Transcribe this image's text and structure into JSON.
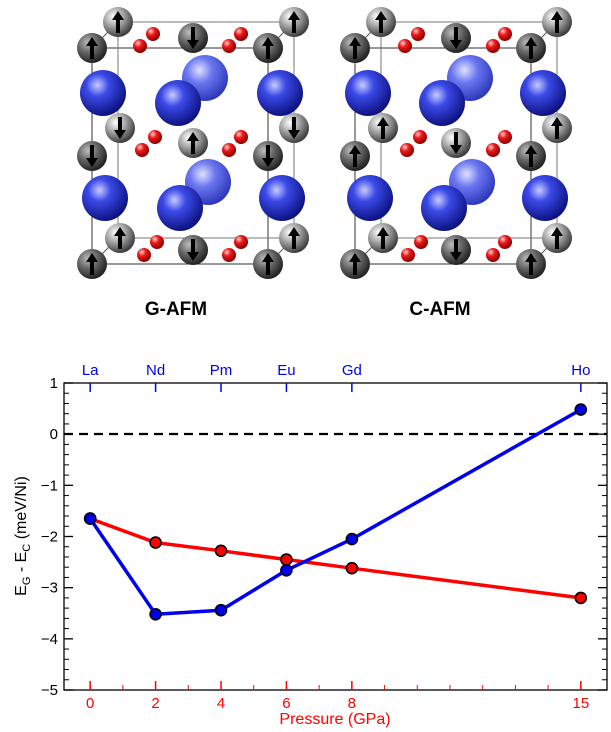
{
  "structures": {
    "left_label": "G-AFM",
    "right_label": "C-AFM",
    "colors": {
      "nickel": "#9a9a9a",
      "rare_earth": "#1f2fd0",
      "oxygen": "#e01010",
      "arrow": "#000000"
    }
  },
  "chart_data": {
    "type": "line",
    "xlabel": "Pressure (GPa)",
    "ylabel_main": "E",
    "ylabel_sub1": "G",
    "ylabel_mid": " - E",
    "ylabel_sub2": "C",
    "ylabel_tail": " (meV/Ni)",
    "xlim": [
      -0.8,
      15.8
    ],
    "ylim": [
      -5,
      1
    ],
    "x_ticks": [
      0,
      2,
      4,
      6,
      8,
      15
    ],
    "x_tick_labels": [
      "0",
      "2",
      "4",
      "6",
      "8",
      "15"
    ],
    "y_ticks": [
      -5,
      -4,
      -3,
      -2,
      -1,
      0,
      1
    ],
    "y_tick_labels": [
      "−5",
      "−4",
      "−3",
      "−2",
      "−1",
      "0",
      "1"
    ],
    "top_axis_positions": [
      0,
      2,
      4,
      6,
      8,
      15
    ],
    "top_axis_labels": [
      "La",
      "Nd",
      "Pm",
      "Eu",
      "Gd",
      "Ho"
    ],
    "zero_line": true,
    "grid": false,
    "series": [
      {
        "color": "#ff0000",
        "x": [
          0,
          2,
          4,
          6,
          8,
          15
        ],
        "y": [
          -1.65,
          -2.12,
          -2.28,
          -2.45,
          -2.62,
          -3.2
        ]
      },
      {
        "color": "#0000ee",
        "x": [
          0,
          2,
          4,
          6,
          8,
          15
        ],
        "y": [
          -1.65,
          -3.52,
          -3.44,
          -2.66,
          -2.05,
          0.48
        ]
      }
    ],
    "axis_colors": {
      "bottom": "#ff0000",
      "top": "#0000ee",
      "left": "#000000"
    }
  }
}
